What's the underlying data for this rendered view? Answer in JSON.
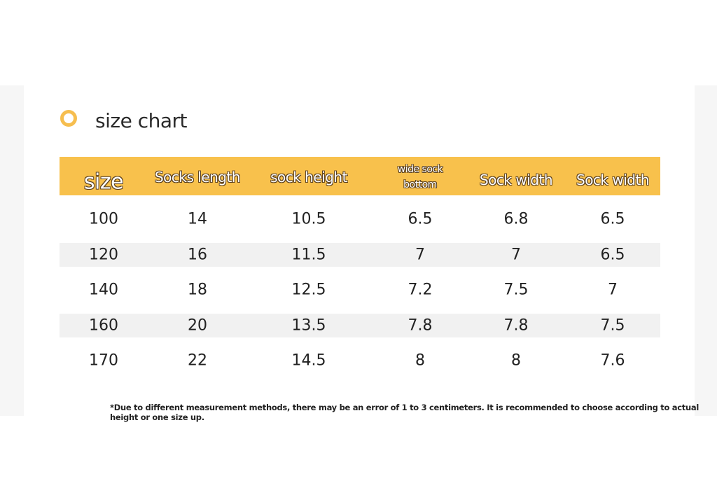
{
  "title": "size chart",
  "table": {
    "header": [
      "size",
      "Socks length",
      "sock height",
      "wide sock bottom",
      "Sock width",
      "Sock width"
    ],
    "rows": [
      [
        100,
        14,
        10.5,
        6.5,
        6.8,
        6.5
      ],
      [
        120,
        16,
        11.5,
        7,
        7,
        6.5
      ],
      [
        140,
        18,
        12.5,
        7.2,
        7.5,
        7
      ],
      [
        160,
        20,
        13.5,
        7.8,
        7.8,
        7.5
      ],
      [
        170,
        22,
        14.5,
        8,
        8,
        7.6
      ]
    ]
  },
  "note": "*Due to different measurement methods, there may be an error of 1 to 3 centimeters. It is recommended to choose according to actual height or one size up."
}
